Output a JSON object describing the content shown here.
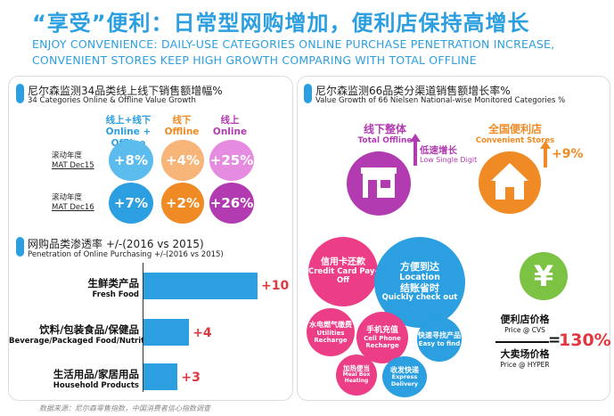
{
  "title": {
    "cn": "“享受”便利：日常型网购增加，便利店保持高增长",
    "en_line1": "ENJOY CONVENIENCE: DAILY-USE CATEGORIES ONLINE PURCHASE PENETRATION INCREASE,",
    "en_line2": "CONVENIENT STORES KEEP HIGH GROWTH COMPARING WITH TOTAL OFFLINE"
  },
  "left_top": {
    "heading_cn": "尼尔森监测34品类线上线下销售额增幅%",
    "heading_en": "34 Categories Online & Offline Value Growth",
    "columns": [
      {
        "cn": "线上+线下",
        "en": "Online + Offline",
        "color": "#2b9fe0"
      },
      {
        "cn": "线下",
        "en": "Offline",
        "color": "#f08a24"
      },
      {
        "cn": "线上",
        "en": "Online",
        "color": "#b23bb2"
      }
    ],
    "rows": [
      {
        "label_cn": "滚动年度",
        "label_en": "MAT Dec15",
        "values": [
          "+8%",
          "+4%",
          "+25%"
        ]
      },
      {
        "label_cn": "滚动年度",
        "label_en": "MAT Dec16",
        "values": [
          "+7%",
          "+2%",
          "+26%"
        ]
      }
    ]
  },
  "left_bottom": {
    "heading_cn": "网购品类渗透率 +/-(2016 vs 2015)",
    "heading_en": "Penetration of Online Purchasing +/-(2016 vs 2015)",
    "bars": [
      {
        "cn": "生鲜类产品",
        "en": "Fresh Food",
        "value": 10,
        "label": "+10"
      },
      {
        "cn": "饮料/包装食品/保健品",
        "en": "Beverage/Packaged Food/Nutrition",
        "value": 4,
        "label": "+4"
      },
      {
        "cn": "生活用品/家居用品",
        "en": "Household Products",
        "value": 3,
        "label": "+3"
      }
    ]
  },
  "right": {
    "heading_cn": "尼尔森监测66品类分渠道销售额增长率%",
    "heading_en": "Value Growth of 66 Nielsen National-wise Monitored Categories %",
    "offline_cn": "线下整体",
    "offline_en": "Total Offline",
    "low_cn": "低速增长",
    "low_en": "Low Single Digit",
    "cvs_cn": "全国便利店",
    "cvs_en": "Convenient Stores",
    "cvs_growth": "+9%",
    "bubbles": [
      {
        "cn": "信用卡还款",
        "en": "Credit Card Pay-Off"
      },
      {
        "cn": "方便到达",
        "en": "Location"
      },
      {
        "cn": "结账省时",
        "en": "Quickly check out"
      },
      {
        "cn": "水电燃气缴费",
        "en": "Utilities Recharge"
      },
      {
        "cn": "手机充值",
        "en": "Cell Phone Recharge"
      },
      {
        "cn": "快速寻找产品",
        "en": "Easy to find"
      },
      {
        "cn": "加热便当",
        "en": "Meal Box Heating"
      },
      {
        "cn": "收发快递",
        "en": "Express Delivery"
      }
    ],
    "yen": "¥",
    "price_cvs_cn": "便利店价格",
    "price_cvs_en": "Price @ CVS",
    "price_hyper_cn": "大卖场价格",
    "price_hyper_en": "Price @ HYPER",
    "ratio_eq": "=",
    "ratio": "130%"
  },
  "footer": "数据来源：尼尔森零售指数，中国消费者信心指数调查",
  "colors": {
    "blue": "#2b9fe0",
    "orange": "#f08a24",
    "purple": "#b23bb2",
    "pink": "#ec3e86",
    "red": "#e0383e",
    "green": "#7cc243"
  }
}
